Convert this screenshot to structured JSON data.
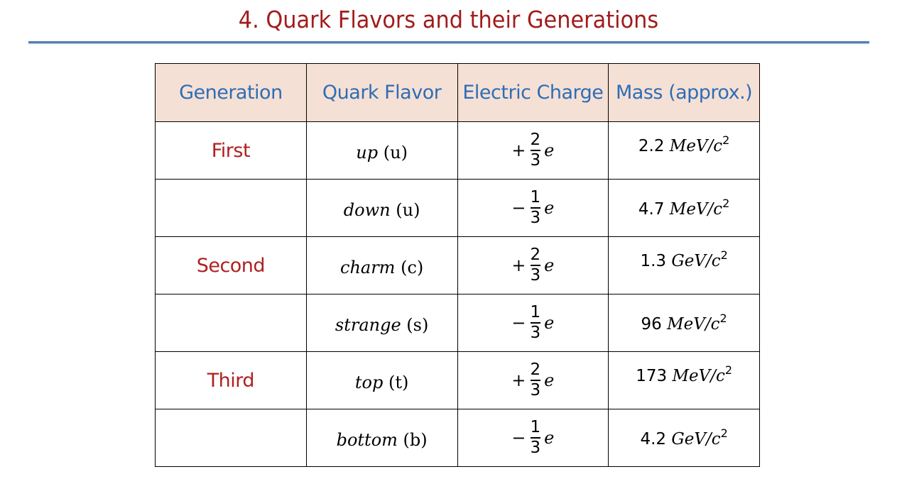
{
  "title": "4. Quark Flavors and their Generations",
  "table": {
    "headers": [
      "Generation",
      "Quark Flavor",
      "Electric Charge",
      "Mass (approx.)"
    ],
    "rows": [
      {
        "generation": "First",
        "flavor": "up",
        "symbol": "(u)",
        "sign": "+",
        "num": "2",
        "den": "3",
        "e": "e",
        "mass_value": "2.2",
        "mass_unit": "MeV/c",
        "mass_exp": "2"
      },
      {
        "generation": "",
        "flavor": "down",
        "symbol": "(u)",
        "sign": "−",
        "num": "1",
        "den": "3",
        "e": "e",
        "mass_value": "4.7",
        "mass_unit": "MeV/c",
        "mass_exp": "2"
      },
      {
        "generation": "Second",
        "flavor": "charm",
        "symbol": "(c)",
        "sign": "+",
        "num": "2",
        "den": "3",
        "e": "e",
        "mass_value": "1.3",
        "mass_unit": "GeV/c",
        "mass_exp": "2"
      },
      {
        "generation": "",
        "flavor": "strange",
        "symbol": "(s)",
        "sign": "−",
        "num": "1",
        "den": "3",
        "e": "e",
        "mass_value": "96",
        "mass_unit": "MeV/c",
        "mass_exp": "2"
      },
      {
        "generation": "Third",
        "flavor": "top",
        "symbol": "(t)",
        "sign": "+",
        "num": "2",
        "den": "3",
        "e": "e",
        "mass_value": "173",
        "mass_unit": "MeV/c",
        "mass_exp": "2"
      },
      {
        "generation": "",
        "flavor": "bottom",
        "symbol": "(b)",
        "sign": "−",
        "num": "1",
        "den": "3",
        "e": "e",
        "mass_value": "4.2",
        "mass_unit": "GeV/c",
        "mass_exp": "2"
      }
    ]
  },
  "colors": {
    "title": "#a11c1c",
    "title_rule": "#4f81bd",
    "header_bg": "#f5e0d5",
    "header_text": "#2e6db5",
    "generation_text": "#b02020"
  }
}
